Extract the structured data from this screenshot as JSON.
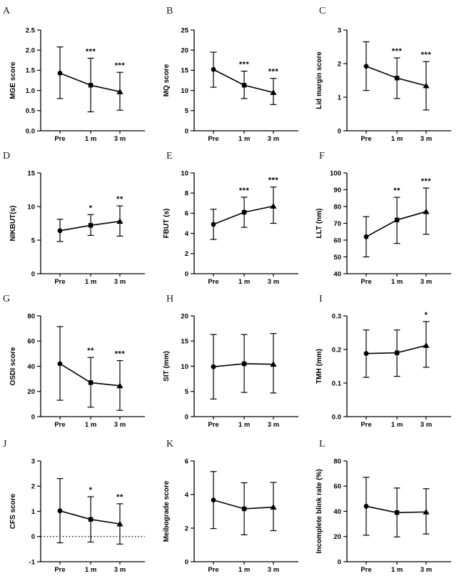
{
  "figure": {
    "background": "#ffffff",
    "ink": "#000000",
    "marker_shapes": [
      "circle",
      "square",
      "triangle"
    ],
    "x_categories": [
      "Pre",
      "1 m",
      "3 m"
    ]
  },
  "chart_data": [
    {
      "panel": "A",
      "type": "line",
      "ylabel": "MGE score",
      "ylim": [
        0,
        2.5
      ],
      "yticks": [
        "0.0",
        "0.5",
        "1.0",
        "1.5",
        "2.0",
        "2.5"
      ],
      "categories": [
        "Pre",
        "1 m",
        "3 m"
      ],
      "values": [
        1.43,
        1.13,
        0.97
      ],
      "err_low": [
        0.8,
        0.47,
        0.51
      ],
      "err_high": [
        2.08,
        1.8,
        1.45
      ],
      "sig": [
        "",
        "***",
        "***"
      ],
      "grid": false,
      "legend": "none"
    },
    {
      "panel": "B",
      "type": "line",
      "ylabel": "MQ score",
      "ylim": [
        0,
        25
      ],
      "yticks": [
        "0",
        "5",
        "10",
        "15",
        "20",
        "25"
      ],
      "categories": [
        "Pre",
        "1 m",
        "3 m"
      ],
      "values": [
        15.2,
        11.3,
        9.5
      ],
      "err_low": [
        10.8,
        8.0,
        6.5
      ],
      "err_high": [
        19.5,
        14.8,
        13.0
      ],
      "sig": [
        "",
        "***",
        "***"
      ],
      "grid": false,
      "legend": "none"
    },
    {
      "panel": "C",
      "type": "line",
      "ylabel": "Lid margin score",
      "ylim": [
        0,
        3
      ],
      "yticks": [
        "0",
        "1",
        "2",
        "3"
      ],
      "categories": [
        "Pre",
        "1 m",
        "3 m"
      ],
      "values": [
        1.92,
        1.57,
        1.34
      ],
      "err_low": [
        1.2,
        0.96,
        0.62
      ],
      "err_high": [
        2.65,
        2.17,
        2.06
      ],
      "sig": [
        "",
        "***",
        "***"
      ],
      "grid": false,
      "legend": "none"
    },
    {
      "panel": "D",
      "type": "line",
      "ylabel": "NIKBUT(s)",
      "ylim": [
        0,
        15
      ],
      "yticks": [
        "0",
        "5",
        "10",
        "15"
      ],
      "categories": [
        "Pre",
        "1 m",
        "3 m"
      ],
      "values": [
        6.4,
        7.2,
        7.8
      ],
      "err_low": [
        4.8,
        5.7,
        5.6
      ],
      "err_high": [
        8.1,
        8.8,
        10.1
      ],
      "sig": [
        "",
        "*",
        "**"
      ],
      "grid": false,
      "legend": "none"
    },
    {
      "panel": "E",
      "type": "line",
      "ylabel": "FBUT (s)",
      "ylim": [
        0,
        10
      ],
      "yticks": [
        "0",
        "2",
        "4",
        "6",
        "8",
        "10"
      ],
      "categories": [
        "Pre",
        "1 m",
        "3 m"
      ],
      "values": [
        4.9,
        6.1,
        6.7
      ],
      "err_low": [
        3.4,
        4.6,
        5.0
      ],
      "err_high": [
        6.4,
        7.6,
        8.6
      ],
      "sig": [
        "",
        "***",
        "***"
      ],
      "grid": false,
      "legend": "none"
    },
    {
      "panel": "F",
      "type": "line",
      "ylabel": "LLT (nm)",
      "ylim": [
        40,
        100
      ],
      "yticks": [
        "40",
        "50",
        "60",
        "70",
        "80",
        "90",
        "100"
      ],
      "categories": [
        "Pre",
        "1 m",
        "3 m"
      ],
      "values": [
        62,
        72,
        77
      ],
      "err_low": [
        50,
        58,
        63.5
      ],
      "err_high": [
        74,
        85.5,
        91
      ],
      "sig": [
        "",
        "**",
        "***"
      ],
      "grid": false,
      "legend": "none"
    },
    {
      "panel": "G",
      "type": "line",
      "ylabel": "OSDI score",
      "ylim": [
        0,
        80
      ],
      "yticks": [
        "0",
        "20",
        "40",
        "60",
        "80"
      ],
      "categories": [
        "Pre",
        "1 m",
        "3 m"
      ],
      "values": [
        42,
        27,
        24.5
      ],
      "err_low": [
        13,
        7.5,
        5.0
      ],
      "err_high": [
        71.5,
        47,
        44.5
      ],
      "sig": [
        "",
        "**",
        "***"
      ],
      "grid": false,
      "legend": "none"
    },
    {
      "panel": "H",
      "type": "line",
      "ylabel": "SIT (mm)",
      "ylim": [
        0,
        20
      ],
      "yticks": [
        "0",
        "5",
        "10",
        "15",
        "20"
      ],
      "categories": [
        "Pre",
        "1 m",
        "3 m"
      ],
      "values": [
        9.9,
        10.5,
        10.4
      ],
      "err_low": [
        3.5,
        4.8,
        4.7
      ],
      "err_high": [
        16.3,
        16.3,
        16.5
      ],
      "sig": [
        "",
        "",
        ""
      ],
      "grid": false,
      "legend": "none"
    },
    {
      "panel": "I",
      "type": "line",
      "ylabel": "TMH (mm)",
      "ylim": [
        0,
        0.3
      ],
      "yticks": [
        "0.0",
        "0.1",
        "0.2",
        "0.3"
      ],
      "categories": [
        "Pre",
        "1 m",
        "3 m"
      ],
      "values": [
        0.188,
        0.19,
        0.212
      ],
      "err_low": [
        0.117,
        0.12,
        0.147
      ],
      "err_high": [
        0.258,
        0.258,
        0.283
      ],
      "sig": [
        "",
        "",
        "*"
      ],
      "grid": false,
      "legend": "none"
    },
    {
      "panel": "J",
      "type": "line",
      "ylabel": "CFS score",
      "ylim": [
        -1,
        3
      ],
      "yticks": [
        "-1",
        "0",
        "1",
        "2",
        "3"
      ],
      "categories": [
        "Pre",
        "1 m",
        "3 m"
      ],
      "values": [
        1.02,
        0.68,
        0.5
      ],
      "err_low": [
        -0.25,
        -0.22,
        -0.3
      ],
      "err_high": [
        2.3,
        1.58,
        1.3
      ],
      "sig": [
        "",
        "*",
        "**"
      ],
      "dotted_line_at": 0,
      "grid": false,
      "legend": "none"
    },
    {
      "panel": "K",
      "type": "line",
      "ylabel": "Meibograde score",
      "ylim": [
        0,
        6
      ],
      "yticks": [
        "0",
        "2",
        "4",
        "6"
      ],
      "categories": [
        "Pre",
        "1 m",
        "3 m"
      ],
      "values": [
        3.67,
        3.15,
        3.25
      ],
      "err_low": [
        1.97,
        1.6,
        1.85
      ],
      "err_high": [
        5.37,
        4.7,
        4.72
      ],
      "sig": [
        "",
        "",
        ""
      ],
      "grid": false,
      "legend": "none"
    },
    {
      "panel": "L",
      "type": "line",
      "ylabel": "Incomplete blink rate (%)",
      "ylim": [
        0,
        80
      ],
      "yticks": [
        "0",
        "20",
        "40",
        "60",
        "80"
      ],
      "categories": [
        "Pre",
        "1 m",
        "3 m"
      ],
      "values": [
        44,
        39,
        39.5
      ],
      "err_low": [
        21,
        19.7,
        22
      ],
      "err_high": [
        67,
        58.5,
        58
      ],
      "sig": [
        "",
        "",
        ""
      ],
      "grid": false,
      "legend": "none"
    }
  ]
}
